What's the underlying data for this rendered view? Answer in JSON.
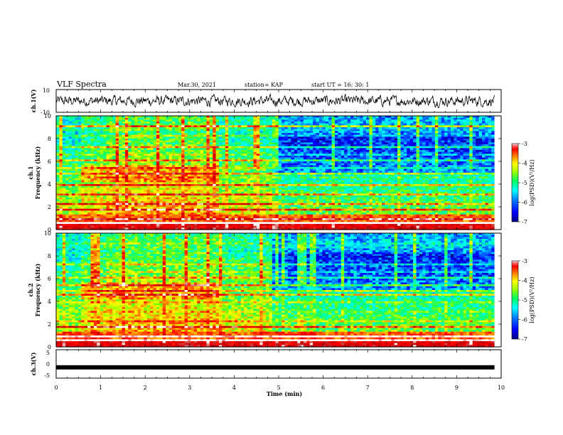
{
  "header": {
    "title": "VLF Spectra",
    "date": "Mar.30, 2021",
    "station": "station= KAP",
    "start": "start  UT =   16: 30: 1"
  },
  "colors": {
    "colormap": [
      "#000080",
      "#0000ff",
      "#0080ff",
      "#00ffff",
      "#00ff80",
      "#80ff00",
      "#ffff00",
      "#ff8000",
      "#ff0000",
      "#c00000",
      "#ffffff"
    ],
    "trace": "#000000",
    "frame": "#000000"
  },
  "chart_data": [
    {
      "type": "line",
      "name": "ch1-waveform",
      "ylabel": "ch.1(V)",
      "ylim": [
        -10,
        10
      ],
      "yticks": [
        "10",
        "-10"
      ],
      "xlim": [
        0,
        10
      ],
      "note_values": "high-rate waveform around ~0 V, amplitude mostly within -5 to +5, x extends to ~9.85 min"
    },
    {
      "type": "heatmap",
      "name": "ch1-spectrogram",
      "ylabel": "ch.1\nFrequency (kHz)",
      "ylim": [
        0,
        10
      ],
      "yticks": [
        "0",
        "2",
        "4",
        "6",
        "8",
        "10"
      ],
      "xlim": [
        0,
        10
      ],
      "colorbar": {
        "label": "log(PSD)(V²/Hz)",
        "ticks": [
          "-3",
          "-4",
          "-5",
          "-6",
          "-7"
        ],
        "range": [
          -7,
          -3
        ]
      },
      "segments_min": [
        0,
        0.5,
        1.1,
        3.65,
        4.85,
        9.85
      ]
    },
    {
      "type": "heatmap",
      "name": "ch2-spectrogram",
      "ylabel": "ch.2\nFrequency (kHz)",
      "ylim": [
        0,
        10
      ],
      "yticks": [
        "0",
        "2",
        "4",
        "6",
        "8",
        "10"
      ],
      "xlim": [
        0,
        10
      ],
      "colorbar": {
        "label": "log(PSD)(V²/Hz)",
        "ticks": [
          "-3",
          "-4",
          "-5",
          "-6",
          "-7"
        ],
        "range": [
          -7,
          -3
        ]
      },
      "segments_min": [
        0,
        0.5,
        1.1,
        3.65,
        4.85,
        9.85
      ]
    },
    {
      "type": "line",
      "name": "ch3-trace",
      "ylabel": "ch.3(V)",
      "ylim": [
        -5,
        5
      ],
      "yticks": [
        "5",
        "0",
        "-5"
      ],
      "xlim": [
        0,
        10
      ],
      "xlabel": "Time  (min)",
      "xticks": [
        "0",
        "1",
        "2",
        "3",
        "4",
        "5",
        "6",
        "7",
        "8",
        "9",
        "10"
      ],
      "x": [
        0,
        9.85
      ],
      "values": [
        -1.2,
        -1.2
      ]
    }
  ]
}
